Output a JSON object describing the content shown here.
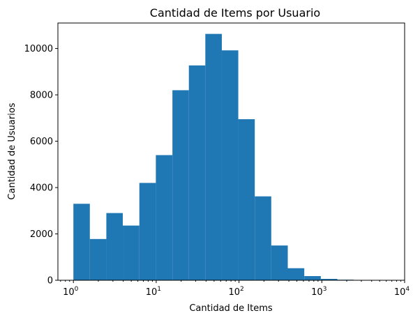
{
  "chart_data": {
    "type": "bar",
    "subtype": "histogram",
    "title": "Cantidad de Items por Usuario",
    "xlabel": "Cantidad de Items",
    "ylabel": "Cantidad de Usuarios",
    "xscale": "log",
    "xlim": [
      0.65,
      10000
    ],
    "ylim": [
      0,
      11100
    ],
    "grid": false,
    "legend": "none",
    "bar_color": "#1f77b4",
    "x_ticks": [
      {
        "value": 1,
        "base": "10",
        "exp": "0"
      },
      {
        "value": 10,
        "base": "10",
        "exp": "1"
      },
      {
        "value": 100,
        "base": "10",
        "exp": "2"
      },
      {
        "value": 1000,
        "base": "10",
        "exp": "3"
      },
      {
        "value": 10000,
        "base": "10",
        "exp": "4"
      }
    ],
    "y_ticks": [
      0,
      2000,
      4000,
      6000,
      8000,
      10000
    ],
    "bins": [
      {
        "x0": 1.0,
        "x1": 1.58,
        "count": 3300
      },
      {
        "x0": 1.58,
        "x1": 2.5,
        "count": 1780
      },
      {
        "x0": 2.5,
        "x1": 3.95,
        "count": 2900
      },
      {
        "x0": 3.95,
        "x1": 6.26,
        "count": 2360
      },
      {
        "x0": 6.26,
        "x1": 9.9,
        "count": 4200
      },
      {
        "x0": 9.9,
        "x1": 15.7,
        "count": 5400
      },
      {
        "x0": 15.7,
        "x1": 24.8,
        "count": 8200
      },
      {
        "x0": 24.8,
        "x1": 39.2,
        "count": 9270
      },
      {
        "x0": 39.2,
        "x1": 62.0,
        "count": 10630
      },
      {
        "x0": 62.0,
        "x1": 98.0,
        "count": 9920
      },
      {
        "x0": 98.0,
        "x1": 155.0,
        "count": 6950
      },
      {
        "x0": 155.0,
        "x1": 245.0,
        "count": 3620
      },
      {
        "x0": 245.0,
        "x1": 388.0,
        "count": 1500
      },
      {
        "x0": 388.0,
        "x1": 614.0,
        "count": 520
      },
      {
        "x0": 614.0,
        "x1": 972.0,
        "count": 180
      },
      {
        "x0": 972.0,
        "x1": 1540.0,
        "count": 60
      },
      {
        "x0": 1540.0,
        "x1": 2430.0,
        "count": 25
      },
      {
        "x0": 2430.0,
        "x1": 3850.0,
        "count": 8
      },
      {
        "x0": 3850.0,
        "x1": 6090.0,
        "count": 3
      },
      {
        "x0": 6090.0,
        "x1": 9640.0,
        "count": 1
      }
    ]
  }
}
